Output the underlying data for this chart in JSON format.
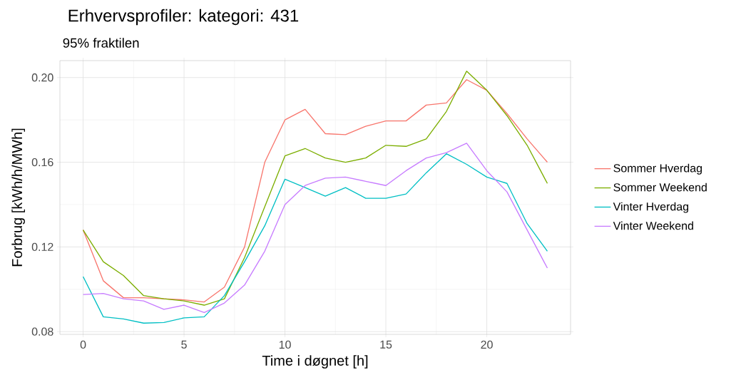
{
  "chart_data": {
    "type": "line",
    "title": "Erhvervsprofiler: kategori: 431",
    "subtitle": "95% fraktilen",
    "xlabel": "Time i døgnet [h]",
    "ylabel": "Forbrug [kWh/h/MWh]",
    "x": [
      0,
      1,
      2,
      3,
      4,
      5,
      6,
      7,
      8,
      9,
      10,
      11,
      12,
      13,
      14,
      15,
      16,
      17,
      18,
      19,
      20,
      21,
      22,
      23
    ],
    "xlim": [
      -1.15,
      24.15
    ],
    "xticks": [
      0,
      5,
      10,
      15,
      20
    ],
    "ylim": [
      0.0787,
      0.208
    ],
    "yticks": [
      {
        "value": 0.08,
        "label": "0.08"
      },
      {
        "value": 0.12,
        "label": "0.12"
      },
      {
        "value": 0.16,
        "label": "0.16"
      },
      {
        "value": 0.2,
        "label": "0.20"
      }
    ],
    "grid": true,
    "legend": "right",
    "series": [
      {
        "name": "Sommer Hverdag",
        "color": "#f8766d",
        "values": [
          0.128,
          0.104,
          0.096,
          0.096,
          0.0955,
          0.095,
          0.094,
          0.101,
          0.12,
          0.16,
          0.18,
          0.185,
          0.1735,
          0.173,
          0.177,
          0.1795,
          0.1795,
          0.187,
          0.188,
          0.199,
          0.194,
          0.183,
          0.171,
          0.16
        ]
      },
      {
        "name": "Sommer Weekend",
        "color": "#7cae00",
        "values": [
          0.128,
          0.113,
          0.1065,
          0.097,
          0.0955,
          0.0945,
          0.0925,
          0.0955,
          0.115,
          0.139,
          0.163,
          0.1665,
          0.162,
          0.16,
          0.162,
          0.168,
          0.1675,
          0.171,
          0.184,
          0.203,
          0.194,
          0.182,
          0.168,
          0.15
        ]
      },
      {
        "name": "Vinter Hverdag",
        "color": "#00bfc4",
        "values": [
          0.106,
          0.087,
          0.086,
          0.084,
          0.0843,
          0.0865,
          0.087,
          0.097,
          0.113,
          0.13,
          0.152,
          0.148,
          0.144,
          0.148,
          0.143,
          0.143,
          0.145,
          0.155,
          0.164,
          0.159,
          0.153,
          0.15,
          0.131,
          0.118
        ]
      },
      {
        "name": "Vinter Weekend",
        "color": "#c77cff",
        "values": [
          0.0975,
          0.098,
          0.0955,
          0.0945,
          0.0905,
          0.0925,
          0.089,
          0.0935,
          0.102,
          0.118,
          0.14,
          0.149,
          0.1525,
          0.153,
          0.151,
          0.149,
          0.156,
          0.162,
          0.1645,
          0.169,
          0.156,
          0.146,
          0.128,
          0.11
        ]
      }
    ]
  }
}
